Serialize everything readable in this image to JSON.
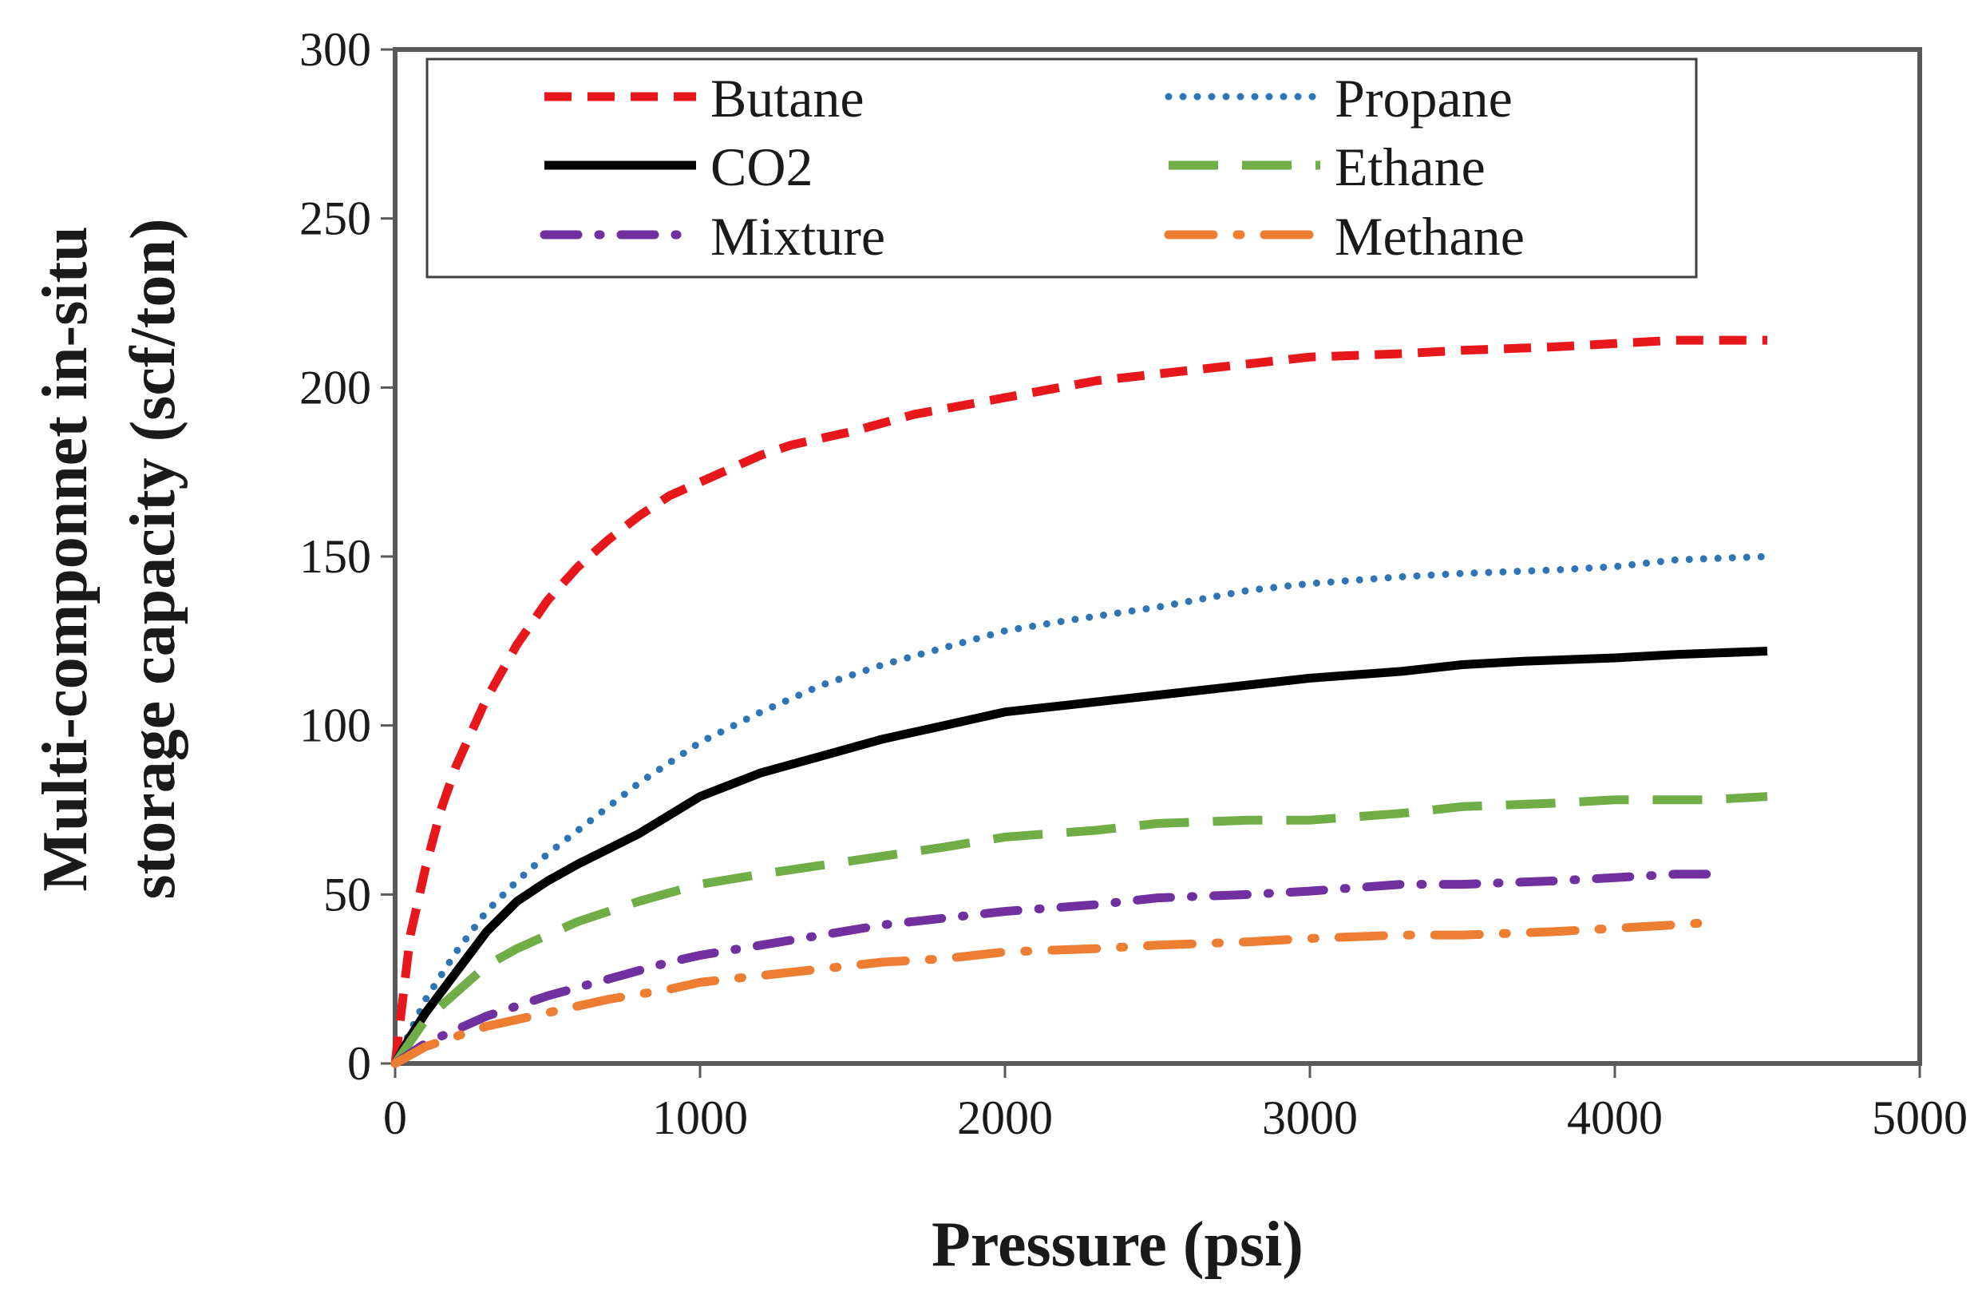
{
  "chart_data": {
    "type": "line",
    "title": "",
    "xlabel": "Pressure  (psi)",
    "ylabel": [
      "Multi-componnet in-situ",
      "storage capacity  (scf/ton)"
    ],
    "xlim": [
      0,
      5000
    ],
    "ylim": [
      0,
      300
    ],
    "xticks": [
      0,
      1000,
      2000,
      3000,
      4000,
      5000
    ],
    "yticks": [
      0,
      50,
      100,
      150,
      200,
      250,
      300
    ],
    "grid": false,
    "legend_position": "top",
    "series": [
      {
        "name": "Butane",
        "color": "#e8171b",
        "dash": "dashed",
        "x": [
          0,
          50,
          100,
          150,
          200,
          300,
          400,
          500,
          600,
          700,
          800,
          900,
          1000,
          1100,
          1200,
          1300,
          1400,
          1500,
          1700,
          2000,
          2300,
          2500,
          2800,
          3000,
          3300,
          3500,
          3800,
          4000,
          4200,
          4500
        ],
        "y": [
          0,
          38,
          58,
          75,
          88,
          108,
          124,
          137,
          147,
          155,
          162,
          168,
          172,
          176,
          180,
          183,
          185,
          187,
          192,
          197,
          202,
          204,
          207,
          209,
          210,
          211,
          212,
          213,
          214,
          214
        ]
      },
      {
        "name": "Propane",
        "color": "#2e75b6",
        "dash": "dotted",
        "x": [
          0,
          100,
          200,
          300,
          400,
          500,
          600,
          700,
          800,
          900,
          1000,
          1200,
          1400,
          1600,
          1800,
          2000,
          2200,
          2500,
          2800,
          3000,
          3300,
          3500,
          3800,
          4000,
          4200,
          4500
        ],
        "y": [
          0,
          19,
          33,
          45,
          54,
          62,
          69,
          76,
          83,
          89,
          95,
          104,
          112,
          118,
          123,
          128,
          131,
          135,
          140,
          142,
          144,
          145,
          146,
          147,
          149,
          150
        ]
      },
      {
        "name": "CO2",
        "color": "#000000",
        "dash": "solid",
        "x": [
          0,
          50,
          100,
          200,
          300,
          400,
          500,
          600,
          800,
          1000,
          1200,
          1400,
          1600,
          1800,
          2000,
          2200,
          2500,
          2800,
          3000,
          3300,
          3500,
          3700,
          4000,
          4200,
          4500
        ],
        "y": [
          0,
          8,
          15,
          27,
          39,
          48,
          54,
          59,
          68,
          79,
          86,
          91,
          96,
          100,
          104,
          106,
          109,
          112,
          114,
          116,
          118,
          119,
          120,
          121,
          122
        ]
      },
      {
        "name": "Ethane",
        "color": "#70ad47",
        "dash": "longdash",
        "x": [
          0,
          100,
          200,
          300,
          400,
          500,
          600,
          800,
          1000,
          1200,
          1500,
          1800,
          2000,
          2300,
          2500,
          2800,
          3000,
          3300,
          3500,
          3800,
          4000,
          4300,
          4500
        ],
        "y": [
          0,
          13,
          21,
          29,
          34,
          38,
          42,
          48,
          53,
          56,
          60,
          64,
          67,
          69,
          71,
          72,
          72,
          74,
          76,
          77,
          78,
          78,
          79
        ]
      },
      {
        "name": "Mixture",
        "color": "#7030a0",
        "dash": "dashdot",
        "x": [
          0,
          100,
          200,
          300,
          400,
          500,
          700,
          900,
          1000,
          1200,
          1400,
          1600,
          1800,
          2000,
          2300,
          2500,
          2800,
          3000,
          3300,
          3500,
          3800,
          4000,
          4200,
          4350
        ],
        "y": [
          0,
          6,
          10,
          14,
          17,
          20,
          25,
          30,
          32,
          35,
          38,
          41,
          43,
          45,
          47,
          49,
          50,
          51,
          53,
          53,
          54,
          55,
          56,
          56
        ]
      },
      {
        "name": "Methane",
        "color": "#ed7d31",
        "dash": "dashdotlong",
        "x": [
          0,
          100,
          200,
          300,
          400,
          500,
          700,
          900,
          1000,
          1200,
          1400,
          1600,
          1800,
          2000,
          2300,
          2500,
          2800,
          3000,
          3300,
          3500,
          3800,
          4000,
          4200,
          4350
        ],
        "y": [
          0,
          5,
          8,
          11,
          13,
          15,
          19,
          22,
          24,
          26,
          28,
          30,
          31,
          33,
          34,
          35,
          36,
          37,
          38,
          38,
          39,
          40,
          41,
          42
        ]
      }
    ]
  }
}
